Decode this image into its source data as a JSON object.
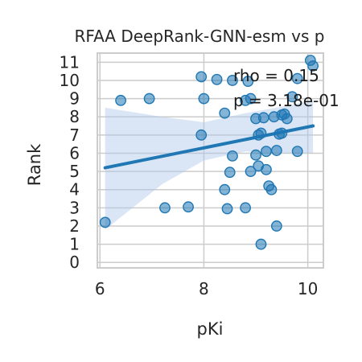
{
  "chart_data": {
    "type": "scatter",
    "title": "RFAA DeepRank-GNN-esm vs p",
    "xlabel": "pKi",
    "ylabel": "Rank",
    "xlim": [
      5.95,
      10.3
    ],
    "ylim": [
      -0.3,
      11.5
    ],
    "xticks": [
      6,
      8,
      10
    ],
    "yticks": [
      0,
      1,
      2,
      3,
      4,
      5,
      6,
      7,
      8,
      9,
      10,
      11
    ],
    "grid": true,
    "annotations": [
      "rho = 0.15",
      "p = 3.18e-01"
    ],
    "point_color": "#1f77b4",
    "line_color": "#1f77b4",
    "band_color": "#aec7e8",
    "regression": {
      "x": [
        6.1,
        10.1
      ],
      "y": [
        5.2,
        7.5
      ]
    },
    "confidence_band": {
      "x": [
        6.1,
        7.2,
        8.0,
        8.8,
        9.4,
        10.1
      ],
      "lower": [
        1.8,
        4.3,
        5.6,
        6.1,
        6.0,
        6.0
      ],
      "upper": [
        8.5,
        8.0,
        7.7,
        8.2,
        8.5,
        8.9
      ]
    },
    "points": [
      {
        "x": 6.1,
        "y": 2.2
      },
      {
        "x": 6.4,
        "y": 8.9
      },
      {
        "x": 6.95,
        "y": 9.0
      },
      {
        "x": 7.25,
        "y": 3.0
      },
      {
        "x": 7.7,
        "y": 3.05
      },
      {
        "x": 7.95,
        "y": 10.2
      },
      {
        "x": 7.95,
        "y": 7.0
      },
      {
        "x": 8.0,
        "y": 9.0
      },
      {
        "x": 8.25,
        "y": 10.05
      },
      {
        "x": 8.4,
        "y": 8.2
      },
      {
        "x": 8.4,
        "y": 4.0
      },
      {
        "x": 8.45,
        "y": 2.95
      },
      {
        "x": 8.5,
        "y": 4.95
      },
      {
        "x": 8.55,
        "y": 10.0
      },
      {
        "x": 8.55,
        "y": 5.85
      },
      {
        "x": 8.8,
        "y": 8.9
      },
      {
        "x": 8.8,
        "y": 3.0
      },
      {
        "x": 8.85,
        "y": 9.95
      },
      {
        "x": 8.9,
        "y": 9.0
      },
      {
        "x": 8.9,
        "y": 5.0
      },
      {
        "x": 9.0,
        "y": 7.9
      },
      {
        "x": 9.0,
        "y": 5.9
      },
      {
        "x": 9.05,
        "y": 7.0
      },
      {
        "x": 9.05,
        "y": 5.3
      },
      {
        "x": 9.1,
        "y": 7.1
      },
      {
        "x": 9.1,
        "y": 1.0
      },
      {
        "x": 9.15,
        "y": 7.95
      },
      {
        "x": 9.2,
        "y": 6.1
      },
      {
        "x": 9.2,
        "y": 5.1
      },
      {
        "x": 9.25,
        "y": 4.2
      },
      {
        "x": 9.3,
        "y": 4.0
      },
      {
        "x": 9.35,
        "y": 8.0
      },
      {
        "x": 9.4,
        "y": 6.15
      },
      {
        "x": 9.4,
        "y": 2.0
      },
      {
        "x": 9.45,
        "y": 7.05
      },
      {
        "x": 9.5,
        "y": 8.1
      },
      {
        "x": 9.5,
        "y": 7.1
      },
      {
        "x": 9.55,
        "y": 8.15
      },
      {
        "x": 9.6,
        "y": 7.9
      },
      {
        "x": 9.7,
        "y": 9.1
      },
      {
        "x": 9.8,
        "y": 10.1
      },
      {
        "x": 9.8,
        "y": 6.1
      },
      {
        "x": 10.05,
        "y": 11.1
      },
      {
        "x": 10.1,
        "y": 10.8
      }
    ]
  }
}
